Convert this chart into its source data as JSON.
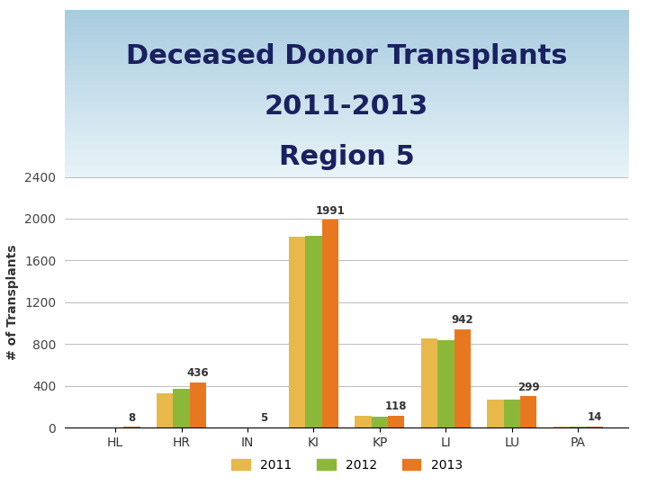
{
  "title_line1": "Deceased Donor Transplants",
  "title_line2": "2011-2013",
  "title_line3": "Region 5",
  "ylabel": "# of Transplants",
  "categories": [
    "HL",
    "HR",
    "IN",
    "KI",
    "KP",
    "LI",
    "LU",
    "PA"
  ],
  "series": {
    "2011": [
      3,
      330,
      2,
      1830,
      115,
      855,
      265,
      14
    ],
    "2012": [
      4,
      370,
      2,
      1840,
      108,
      835,
      268,
      8
    ],
    "2013": [
      8,
      436,
      5,
      1991,
      118,
      942,
      299,
      14
    ]
  },
  "annotations": [
    8,
    436,
    5,
    1991,
    118,
    942,
    299,
    14
  ],
  "colors": {
    "2011": "#E8B84B",
    "2012": "#8CB83A",
    "2013": "#E87820"
  },
  "ylim": [
    0,
    2400
  ],
  "yticks": [
    0,
    400,
    800,
    1200,
    1600,
    2000,
    2400
  ],
  "bar_width": 0.25,
  "background_color": "#ffffff",
  "title_color": "#1a2060",
  "title_fontsize": 22,
  "axis_fontsize": 10,
  "legend_labels": [
    "2011",
    "2012",
    "2013"
  ],
  "sky_top": "#a8cce0",
  "sky_bottom": "#e8f4f8"
}
